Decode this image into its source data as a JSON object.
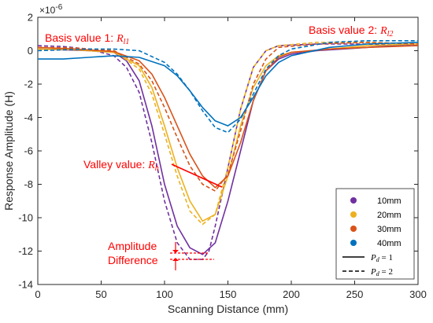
{
  "chart_data": {
    "type": "line",
    "xlabel": "Scanning Distance (mm)",
    "ylabel": "Response Amplitude (H)",
    "y_exponent": "×10",
    "y_exponent_power": "-6",
    "xlim": [
      0,
      300
    ],
    "ylim": [
      -14,
      2
    ],
    "xticks": [
      0,
      50,
      100,
      150,
      200,
      250,
      300
    ],
    "yticks": [
      2,
      0,
      -2,
      -4,
      -6,
      -8,
      -10,
      -12,
      -14
    ],
    "grid": false,
    "legend_position": "bottom-right",
    "legend": {
      "colors": [
        {
          "label": "10mm",
          "color": "#7030a0"
        },
        {
          "label": "20mm",
          "color": "#edb120"
        },
        {
          "label": "30mm",
          "color": "#d95319"
        },
        {
          "label": "40mm",
          "color": "#0072bd"
        }
      ],
      "styles": [
        {
          "symbol": "P",
          "sub": "d",
          "rest": " = 1",
          "dash": "solid"
        },
        {
          "symbol": "P",
          "sub": "d",
          "rest": " = 2",
          "dash": "dashed"
        }
      ]
    },
    "series": [
      {
        "depth": "10mm",
        "pd": "1",
        "color": "#7030a0",
        "dash": "solid",
        "points": [
          [
            0,
            0.1
          ],
          [
            20,
            0.05
          ],
          [
            40,
            0
          ],
          [
            60,
            -0.1
          ],
          [
            70,
            -0.6
          ],
          [
            80,
            -1.8
          ],
          [
            90,
            -4.5
          ],
          [
            100,
            -8.0
          ],
          [
            110,
            -10.5
          ],
          [
            120,
            -11.8
          ],
          [
            130,
            -12.2
          ],
          [
            140,
            -11.5
          ],
          [
            150,
            -9.0
          ],
          [
            160,
            -6.0
          ],
          [
            170,
            -3.0
          ],
          [
            180,
            -1.2
          ],
          [
            190,
            -0.5
          ],
          [
            200,
            -0.2
          ],
          [
            220,
            0
          ],
          [
            240,
            0.1
          ],
          [
            260,
            0.2
          ],
          [
            280,
            0.3
          ],
          [
            300,
            0.3
          ]
        ]
      },
      {
        "depth": "10mm",
        "pd": "2",
        "color": "#7030a0",
        "dash": "dashed",
        "points": [
          [
            0,
            0.3
          ],
          [
            20,
            0.25
          ],
          [
            40,
            0.1
          ],
          [
            60,
            -0.3
          ],
          [
            70,
            -1.0
          ],
          [
            80,
            -2.5
          ],
          [
            90,
            -5.5
          ],
          [
            100,
            -9.0
          ],
          [
            110,
            -11.5
          ],
          [
            120,
            -12.5
          ],
          [
            130,
            -12.5
          ],
          [
            135,
            -12.0
          ],
          [
            140,
            -10.5
          ],
          [
            150,
            -7.0
          ],
          [
            160,
            -3.5
          ],
          [
            170,
            -1.0
          ],
          [
            180,
            0
          ],
          [
            190,
            0.3
          ],
          [
            220,
            0.4
          ],
          [
            260,
            0.4
          ],
          [
            300,
            0.3
          ]
        ]
      },
      {
        "depth": "20mm",
        "pd": "1",
        "color": "#edb120",
        "dash": "solid",
        "points": [
          [
            0,
            0.1
          ],
          [
            30,
            0.05
          ],
          [
            60,
            -0.1
          ],
          [
            80,
            -0.9
          ],
          [
            90,
            -2.2
          ],
          [
            100,
            -4.5
          ],
          [
            110,
            -7.0
          ],
          [
            120,
            -9.0
          ],
          [
            130,
            -10.2
          ],
          [
            140,
            -9.8
          ],
          [
            150,
            -7.5
          ],
          [
            160,
            -4.5
          ],
          [
            170,
            -2.2
          ],
          [
            180,
            -0.9
          ],
          [
            190,
            -0.3
          ],
          [
            200,
            -0.1
          ],
          [
            230,
            0.1
          ],
          [
            260,
            0.3
          ],
          [
            300,
            0.4
          ]
        ]
      },
      {
        "depth": "20mm",
        "pd": "2",
        "color": "#edb120",
        "dash": "dashed",
        "points": [
          [
            0,
            0.2
          ],
          [
            30,
            0.15
          ],
          [
            60,
            0
          ],
          [
            80,
            -1.1
          ],
          [
            90,
            -2.6
          ],
          [
            100,
            -5.0
          ],
          [
            110,
            -7.5
          ],
          [
            120,
            -9.6
          ],
          [
            130,
            -10.4
          ],
          [
            140,
            -9.8
          ],
          [
            150,
            -7.0
          ],
          [
            160,
            -3.5
          ],
          [
            170,
            -1.0
          ],
          [
            180,
            0
          ],
          [
            190,
            0.3
          ],
          [
            220,
            0.5
          ],
          [
            260,
            0.5
          ],
          [
            300,
            0.4
          ]
        ]
      },
      {
        "depth": "30mm",
        "pd": "1",
        "color": "#d95319",
        "dash": "solid",
        "points": [
          [
            0,
            0.2
          ],
          [
            30,
            0.1
          ],
          [
            60,
            -0.05
          ],
          [
            80,
            -0.6
          ],
          [
            90,
            -1.4
          ],
          [
            100,
            -2.8
          ],
          [
            110,
            -4.5
          ],
          [
            120,
            -6.2
          ],
          [
            130,
            -7.5
          ],
          [
            140,
            -8.2
          ],
          [
            150,
            -7.5
          ],
          [
            160,
            -5.5
          ],
          [
            170,
            -3.0
          ],
          [
            180,
            -1.2
          ],
          [
            190,
            -0.4
          ],
          [
            200,
            -0.1
          ],
          [
            230,
            0.1
          ],
          [
            260,
            0.2
          ],
          [
            300,
            0.3
          ]
        ]
      },
      {
        "depth": "30mm",
        "pd": "2",
        "color": "#d95319",
        "dash": "dashed",
        "points": [
          [
            0,
            0.2
          ],
          [
            30,
            0.15
          ],
          [
            60,
            0
          ],
          [
            80,
            -0.8
          ],
          [
            90,
            -1.8
          ],
          [
            100,
            -3.4
          ],
          [
            110,
            -5.2
          ],
          [
            120,
            -6.9
          ],
          [
            130,
            -8.0
          ],
          [
            140,
            -8.4
          ],
          [
            150,
            -7.4
          ],
          [
            160,
            -4.8
          ],
          [
            170,
            -2.0
          ],
          [
            180,
            -0.5
          ],
          [
            190,
            0.2
          ],
          [
            220,
            0.4
          ],
          [
            260,
            0.5
          ],
          [
            300,
            0.4
          ]
        ]
      },
      {
        "depth": "40mm",
        "pd": "1",
        "color": "#0072bd",
        "dash": "solid",
        "points": [
          [
            0,
            -0.5
          ],
          [
            20,
            -0.5
          ],
          [
            40,
            -0.4
          ],
          [
            60,
            -0.3
          ],
          [
            80,
            -0.4
          ],
          [
            100,
            -0.9
          ],
          [
            110,
            -1.5
          ],
          [
            120,
            -2.4
          ],
          [
            130,
            -3.4
          ],
          [
            140,
            -4.2
          ],
          [
            150,
            -4.5
          ],
          [
            160,
            -4.0
          ],
          [
            170,
            -2.8
          ],
          [
            180,
            -1.5
          ],
          [
            190,
            -0.7
          ],
          [
            200,
            -0.3
          ],
          [
            230,
            0.2
          ],
          [
            260,
            0.4
          ],
          [
            300,
            0.5
          ]
        ]
      },
      {
        "depth": "40mm",
        "pd": "2",
        "color": "#0072bd",
        "dash": "dashed",
        "points": [
          [
            0,
            0
          ],
          [
            20,
            0.05
          ],
          [
            40,
            0.1
          ],
          [
            60,
            0.1
          ],
          [
            80,
            0
          ],
          [
            100,
            -0.7
          ],
          [
            110,
            -1.4
          ],
          [
            120,
            -2.4
          ],
          [
            130,
            -3.6
          ],
          [
            140,
            -4.6
          ],
          [
            150,
            -4.9
          ],
          [
            160,
            -4.1
          ],
          [
            170,
            -2.6
          ],
          [
            180,
            -1.1
          ],
          [
            190,
            -0.3
          ],
          [
            200,
            0.1
          ],
          [
            230,
            0.5
          ],
          [
            260,
            0.6
          ],
          [
            300,
            0.6
          ]
        ]
      }
    ],
    "annotations": {
      "basis1_text": "Basis value 1: ",
      "basis1_math": "R",
      "basis1_sub": "l1",
      "basis2_text": "Basis value 2: ",
      "basis2_math": "R",
      "basis2_sub": "l2",
      "valley_text": "Valley value: ",
      "valley_math": "R",
      "valley_sub": "h",
      "amp_line1": "Amplitude",
      "amp_line2": "Difference",
      "color": "#ff0000"
    }
  }
}
